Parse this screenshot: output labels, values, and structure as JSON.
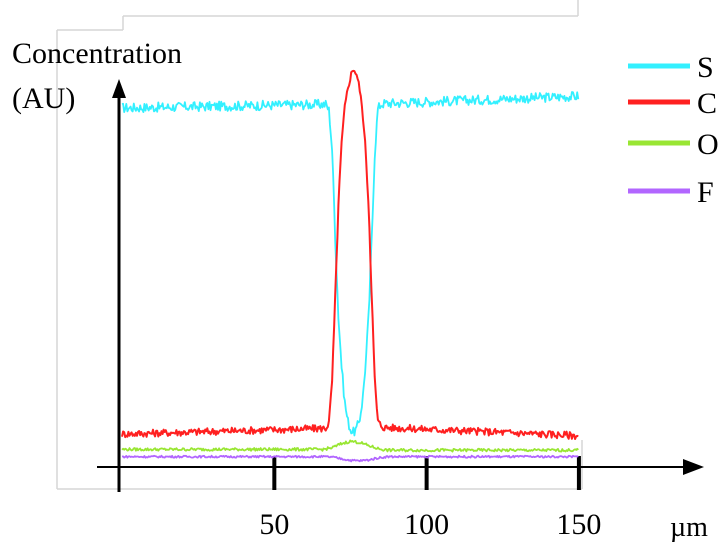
{
  "chart_data": {
    "type": "line",
    "title": "",
    "ylabel_line1": "Concentration",
    "ylabel_line2": "(AU)",
    "xunit": "µm",
    "xlim": [
      -1,
      152
    ],
    "ylim": [
      0,
      100
    ],
    "grid": false,
    "legend_position": "right",
    "xticks": [
      {
        "value": 50,
        "label": "50"
      },
      {
        "value": 100,
        "label": "100"
      },
      {
        "value": 150,
        "label": "150"
      }
    ],
    "series": [
      {
        "name": "S",
        "color": "#33f0ff",
        "x": [
          0,
          67,
          68,
          69,
          70,
          71,
          72,
          73,
          74,
          75,
          76,
          77,
          78,
          79,
          80,
          81,
          82,
          83,
          84,
          85,
          86,
          150
        ],
        "y": [
          87.7,
          88.6,
          87.0,
          77.0,
          56.0,
          37.0,
          25.0,
          16.0,
          11.0,
          8.5,
          7.8,
          8.6,
          11.0,
          16.0,
          25.0,
          37.0,
          56.0,
          77.0,
          87.5,
          88.6,
          88.8,
          90.6
        ]
      },
      {
        "name": "C",
        "color": "#ff2020",
        "x": [
          0,
          67,
          68,
          69,
          70,
          71,
          72,
          73,
          74,
          75,
          76,
          77,
          78,
          79,
          80,
          81,
          82,
          83,
          84,
          85,
          86,
          150
        ],
        "y": [
          7.4,
          8.8,
          10.5,
          21.0,
          41.0,
          63.0,
          78.0,
          87.0,
          92.0,
          95.5,
          97.5,
          96.0,
          92.5,
          86.5,
          77.0,
          63.0,
          41.0,
          20.0,
          10.5,
          9.5,
          9.0,
          7.0
        ]
      },
      {
        "name": "O",
        "color": "#99e633",
        "x": [
          0,
          66,
          69,
          72,
          75,
          78,
          81,
          84,
          87,
          150
        ],
        "y": [
          3.6,
          3.6,
          4.0,
          5.0,
          5.6,
          5.3,
          4.5,
          3.8,
          3.4,
          3.4
        ]
      },
      {
        "name": "F",
        "color": "#b266ff",
        "x": [
          0,
          66,
          69,
          72,
          75,
          78,
          81,
          84,
          87,
          150
        ],
        "y": [
          1.8,
          1.8,
          1.7,
          1.3,
          0.9,
          0.8,
          1.0,
          1.5,
          1.8,
          1.8
        ]
      }
    ],
    "legend_labels": [
      "S",
      "C",
      "O",
      "F"
    ]
  }
}
